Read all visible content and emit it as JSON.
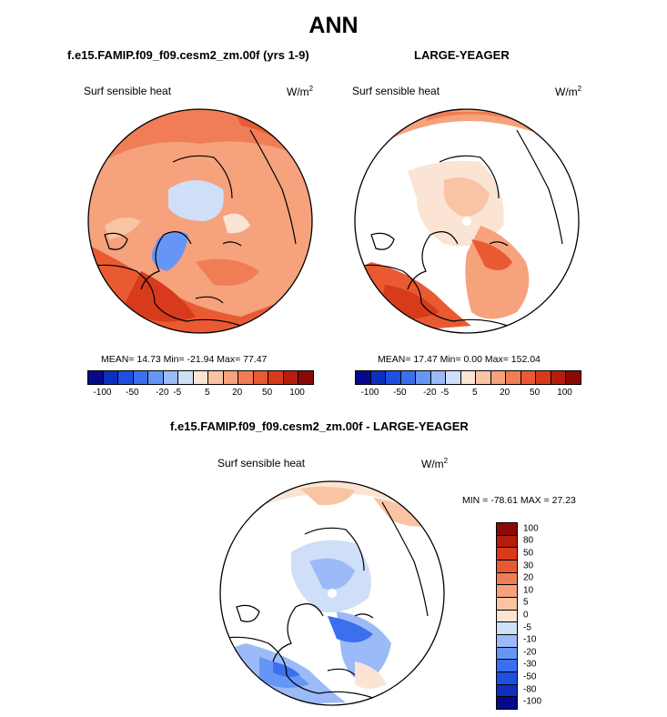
{
  "title": "ANN",
  "panel_a": {
    "case_title": "f.e15.FAMIP.f09_f09.cesm2_zm.00f (yrs 1-9)",
    "variable": "Surf sensible heat",
    "units": "W/m",
    "units_exp": "2",
    "stats": "MEAN=  14.73  Min= -21.94  Max=  77.47"
  },
  "panel_b": {
    "case_title": "LARGE-YEAGER",
    "variable": "Surf sensible heat",
    "units": "W/m",
    "units_exp": "2",
    "stats": "MEAN=  17.47  Min=   0.00  Max= 152.04"
  },
  "panel_diff": {
    "case_title": "f.e15.FAMIP.f09_f09.cesm2_zm.00f - LARGE-YEAGER",
    "variable": "Surf sensible heat",
    "units": "W/m",
    "units_exp": "2",
    "stats": "MIN = -78.61 MAX =  27.23"
  },
  "colorbar_main": {
    "colors": [
      "#08088c",
      "#0d2fbd",
      "#1f4fe0",
      "#3a70ee",
      "#6696f5",
      "#9bbaf7",
      "#cfdff8",
      "#fbe4d3",
      "#f8c4a4",
      "#f5a27d",
      "#f07d55",
      "#e95a33",
      "#d83a1c",
      "#b51d0f",
      "#8c0a05"
    ],
    "tick_labels": [
      "-100",
      "-50",
      "-20",
      "-5",
      "5",
      "20",
      "50",
      "100"
    ]
  },
  "colorbar_diff": {
    "colors": [
      "#8c0a05",
      "#b51d0f",
      "#d83a1c",
      "#e95a33",
      "#f07d55",
      "#f5a27d",
      "#f8c4a4",
      "#fbe4d3",
      "#cfdff8",
      "#9bbaf7",
      "#6696f5",
      "#3a70ee",
      "#1f4fe0",
      "#0d2fbd",
      "#08088c"
    ],
    "tick_labels": [
      "100",
      "80",
      "50",
      "30",
      "20",
      "10",
      "5",
      "0",
      "-5",
      "-10",
      "-20",
      "-30",
      "-50",
      "-80",
      "-100"
    ]
  },
  "chart_data": [
    {
      "type": "heatmap",
      "title": "f.e15.FAMIP.f09_f09.cesm2_zm.00f (yrs 1-9)",
      "variable": "Surf sensible heat",
      "units": "W/m2",
      "projection": "north polar stereographic",
      "mean": 14.73,
      "min": -21.94,
      "max": 77.47,
      "levels": [
        -100,
        -50,
        -20,
        -5,
        5,
        20,
        50,
        100
      ]
    },
    {
      "type": "heatmap",
      "title": "LARGE-YEAGER",
      "variable": "Surf sensible heat",
      "units": "W/m2",
      "projection": "north polar stereographic",
      "mean": 17.47,
      "min": 0.0,
      "max": 152.04,
      "levels": [
        -100,
        -50,
        -20,
        -5,
        5,
        20,
        50,
        100
      ]
    },
    {
      "type": "heatmap",
      "title": "f.e15.FAMIP.f09_f09.cesm2_zm.00f - LARGE-YEAGER",
      "variable": "Surf sensible heat",
      "units": "W/m2",
      "projection": "north polar stereographic",
      "min": -78.61,
      "max": 27.23,
      "levels": [
        -100,
        -80,
        -50,
        -30,
        -20,
        -10,
        -5,
        0,
        5,
        10,
        20,
        30,
        50,
        80,
        100
      ]
    }
  ]
}
